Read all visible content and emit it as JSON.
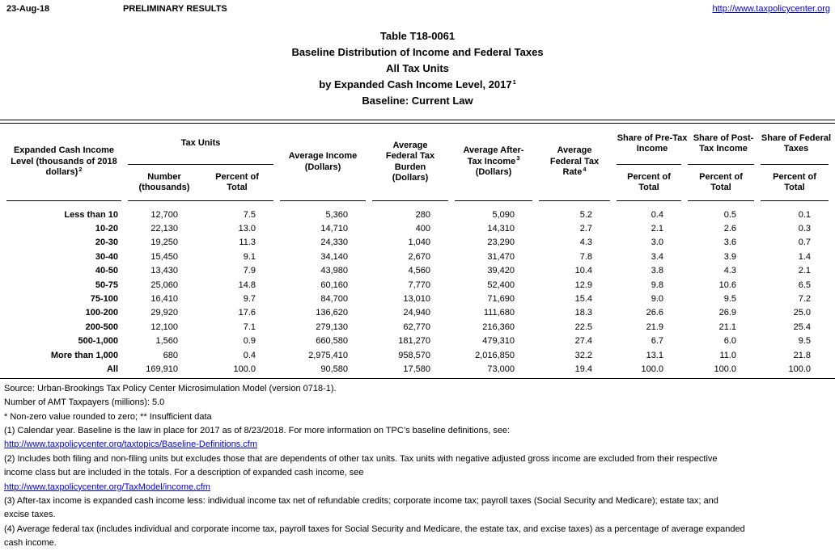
{
  "meta": {
    "date": "23-Aug-18",
    "status": "PRELIMINARY RESULTS",
    "url": "http://www.taxpolicycenter.org"
  },
  "colors": {
    "link": "#0000EE",
    "text": "#000000",
    "rule": "#000000"
  },
  "title": {
    "line1": "Table T18-0061",
    "line2": "Baseline Distribution of Income and Federal Taxes",
    "line3": "All Tax Units",
    "line4": {
      "text": "by Expanded Cash Income Level, 2017",
      "sup": "1"
    },
    "line5": "Baseline: Current Law"
  },
  "table": {
    "header": {
      "income_level": {
        "text": "Expanded Cash Income Level (thousands of 2018 dollars)",
        "sup": "2"
      },
      "tax_units_group": "Tax Units",
      "number_sub": "Number (thousands)",
      "percent_sub": "Percent of Total",
      "avg_income": "Average Income (Dollars)",
      "avg_burden": "Average Federal Tax Burden (Dollars)",
      "avg_after_tax": {
        "before": "Average After-Tax Income",
        "sup": "3",
        "after": "(Dollars)"
      },
      "avg_rate": {
        "before": "Average Federal Tax Rate",
        "sup": "4"
      },
      "share_pre_group": "Share of Pre-Tax Income",
      "share_post_group": "Share of Post-Tax Income",
      "share_fed_group": "Share of Federal Taxes"
    },
    "rows": [
      [
        "Less than 10",
        "12,700",
        "7.5",
        "5,360",
        "280",
        "5,090",
        "5.2",
        "0.4",
        "0.5",
        "0.1"
      ],
      [
        "10-20",
        "22,130",
        "13.0",
        "14,710",
        "400",
        "14,310",
        "2.7",
        "2.1",
        "2.6",
        "0.3"
      ],
      [
        "20-30",
        "19,250",
        "11.3",
        "24,330",
        "1,040",
        "23,290",
        "4.3",
        "3.0",
        "3.6",
        "0.7"
      ],
      [
        "30-40",
        "15,450",
        "9.1",
        "34,140",
        "2,670",
        "31,470",
        "7.8",
        "3.4",
        "3.9",
        "1.4"
      ],
      [
        "40-50",
        "13,430",
        "7.9",
        "43,980",
        "4,560",
        "39,420",
        "10.4",
        "3.8",
        "4.3",
        "2.1"
      ],
      [
        "50-75",
        "25,060",
        "14.8",
        "60,160",
        "7,770",
        "52,400",
        "12.9",
        "9.8",
        "10.6",
        "6.5"
      ],
      [
        "75-100",
        "16,410",
        "9.7",
        "84,700",
        "13,010",
        "71,690",
        "15.4",
        "9.0",
        "9.5",
        "7.2"
      ],
      [
        "100-200",
        "29,920",
        "17.6",
        "136,620",
        "24,940",
        "111,680",
        "18.3",
        "26.6",
        "26.9",
        "25.0"
      ],
      [
        "200-500",
        "12,100",
        "7.1",
        "279,130",
        "62,770",
        "216,360",
        "22.5",
        "21.9",
        "21.1",
        "25.4"
      ],
      [
        "500-1,000",
        "1,560",
        "0.9",
        "660,580",
        "181,270",
        "479,310",
        "27.4",
        "6.7",
        "6.0",
        "9.5"
      ],
      [
        "More than 1,000",
        "680",
        "0.4",
        "2,975,410",
        "958,570",
        "2,016,850",
        "32.2",
        "13.1",
        "11.0",
        "21.8"
      ],
      [
        "All",
        "169,910",
        "100.0",
        "90,580",
        "17,580",
        "73,000",
        "19.4",
        "100.0",
        "100.0",
        "100.0"
      ]
    ]
  },
  "footer": {
    "lines": [
      {
        "text": "Source: Urban-Brookings Tax Policy Center Microsimulation Model (version 0718-1).",
        "link": false
      },
      {
        "text": "Number of AMT Taxpayers (millions): 5.0",
        "link": false
      },
      {
        "text": "* Non-zero value rounded to zero; ** Insufficient data",
        "link": false
      },
      {
        "text": "(1) Calendar year. Baseline is the law in place for 2017 as of 8/23/2018. For more information on TPC’s baseline definitions, see:",
        "link": false
      },
      {
        "text": "http://www.taxpolicycenter.org/taxtopics/Baseline-Definitions.cfm",
        "link": true
      },
      {
        "text": "(2) Includes both filing and non-filing units but excludes those that are dependents of other tax units. Tax units with negative adjusted gross income are excluded from their respective",
        "link": false
      },
      {
        "text": "income class but are included in the totals. For a description of expanded cash income, see",
        "link": false
      },
      {
        "text": "http://www.taxpolicycenter.org/TaxModel/income.cfm",
        "link": true
      },
      {
        "text": "(3) After-tax income is expanded cash income less: individual income tax net of refundable credits; corporate income tax; payroll taxes (Social Security and Medicare); estate tax; and",
        "link": false
      },
      {
        "text": "excise taxes.",
        "link": false
      },
      {
        "text": "(4) Average federal tax (includes individual and corporate income tax, payroll taxes for Social Security and Medicare, the estate tax, and excise taxes) as a percentage of average expanded",
        "link": false
      },
      {
        "text": "cash income.",
        "link": false
      }
    ]
  }
}
